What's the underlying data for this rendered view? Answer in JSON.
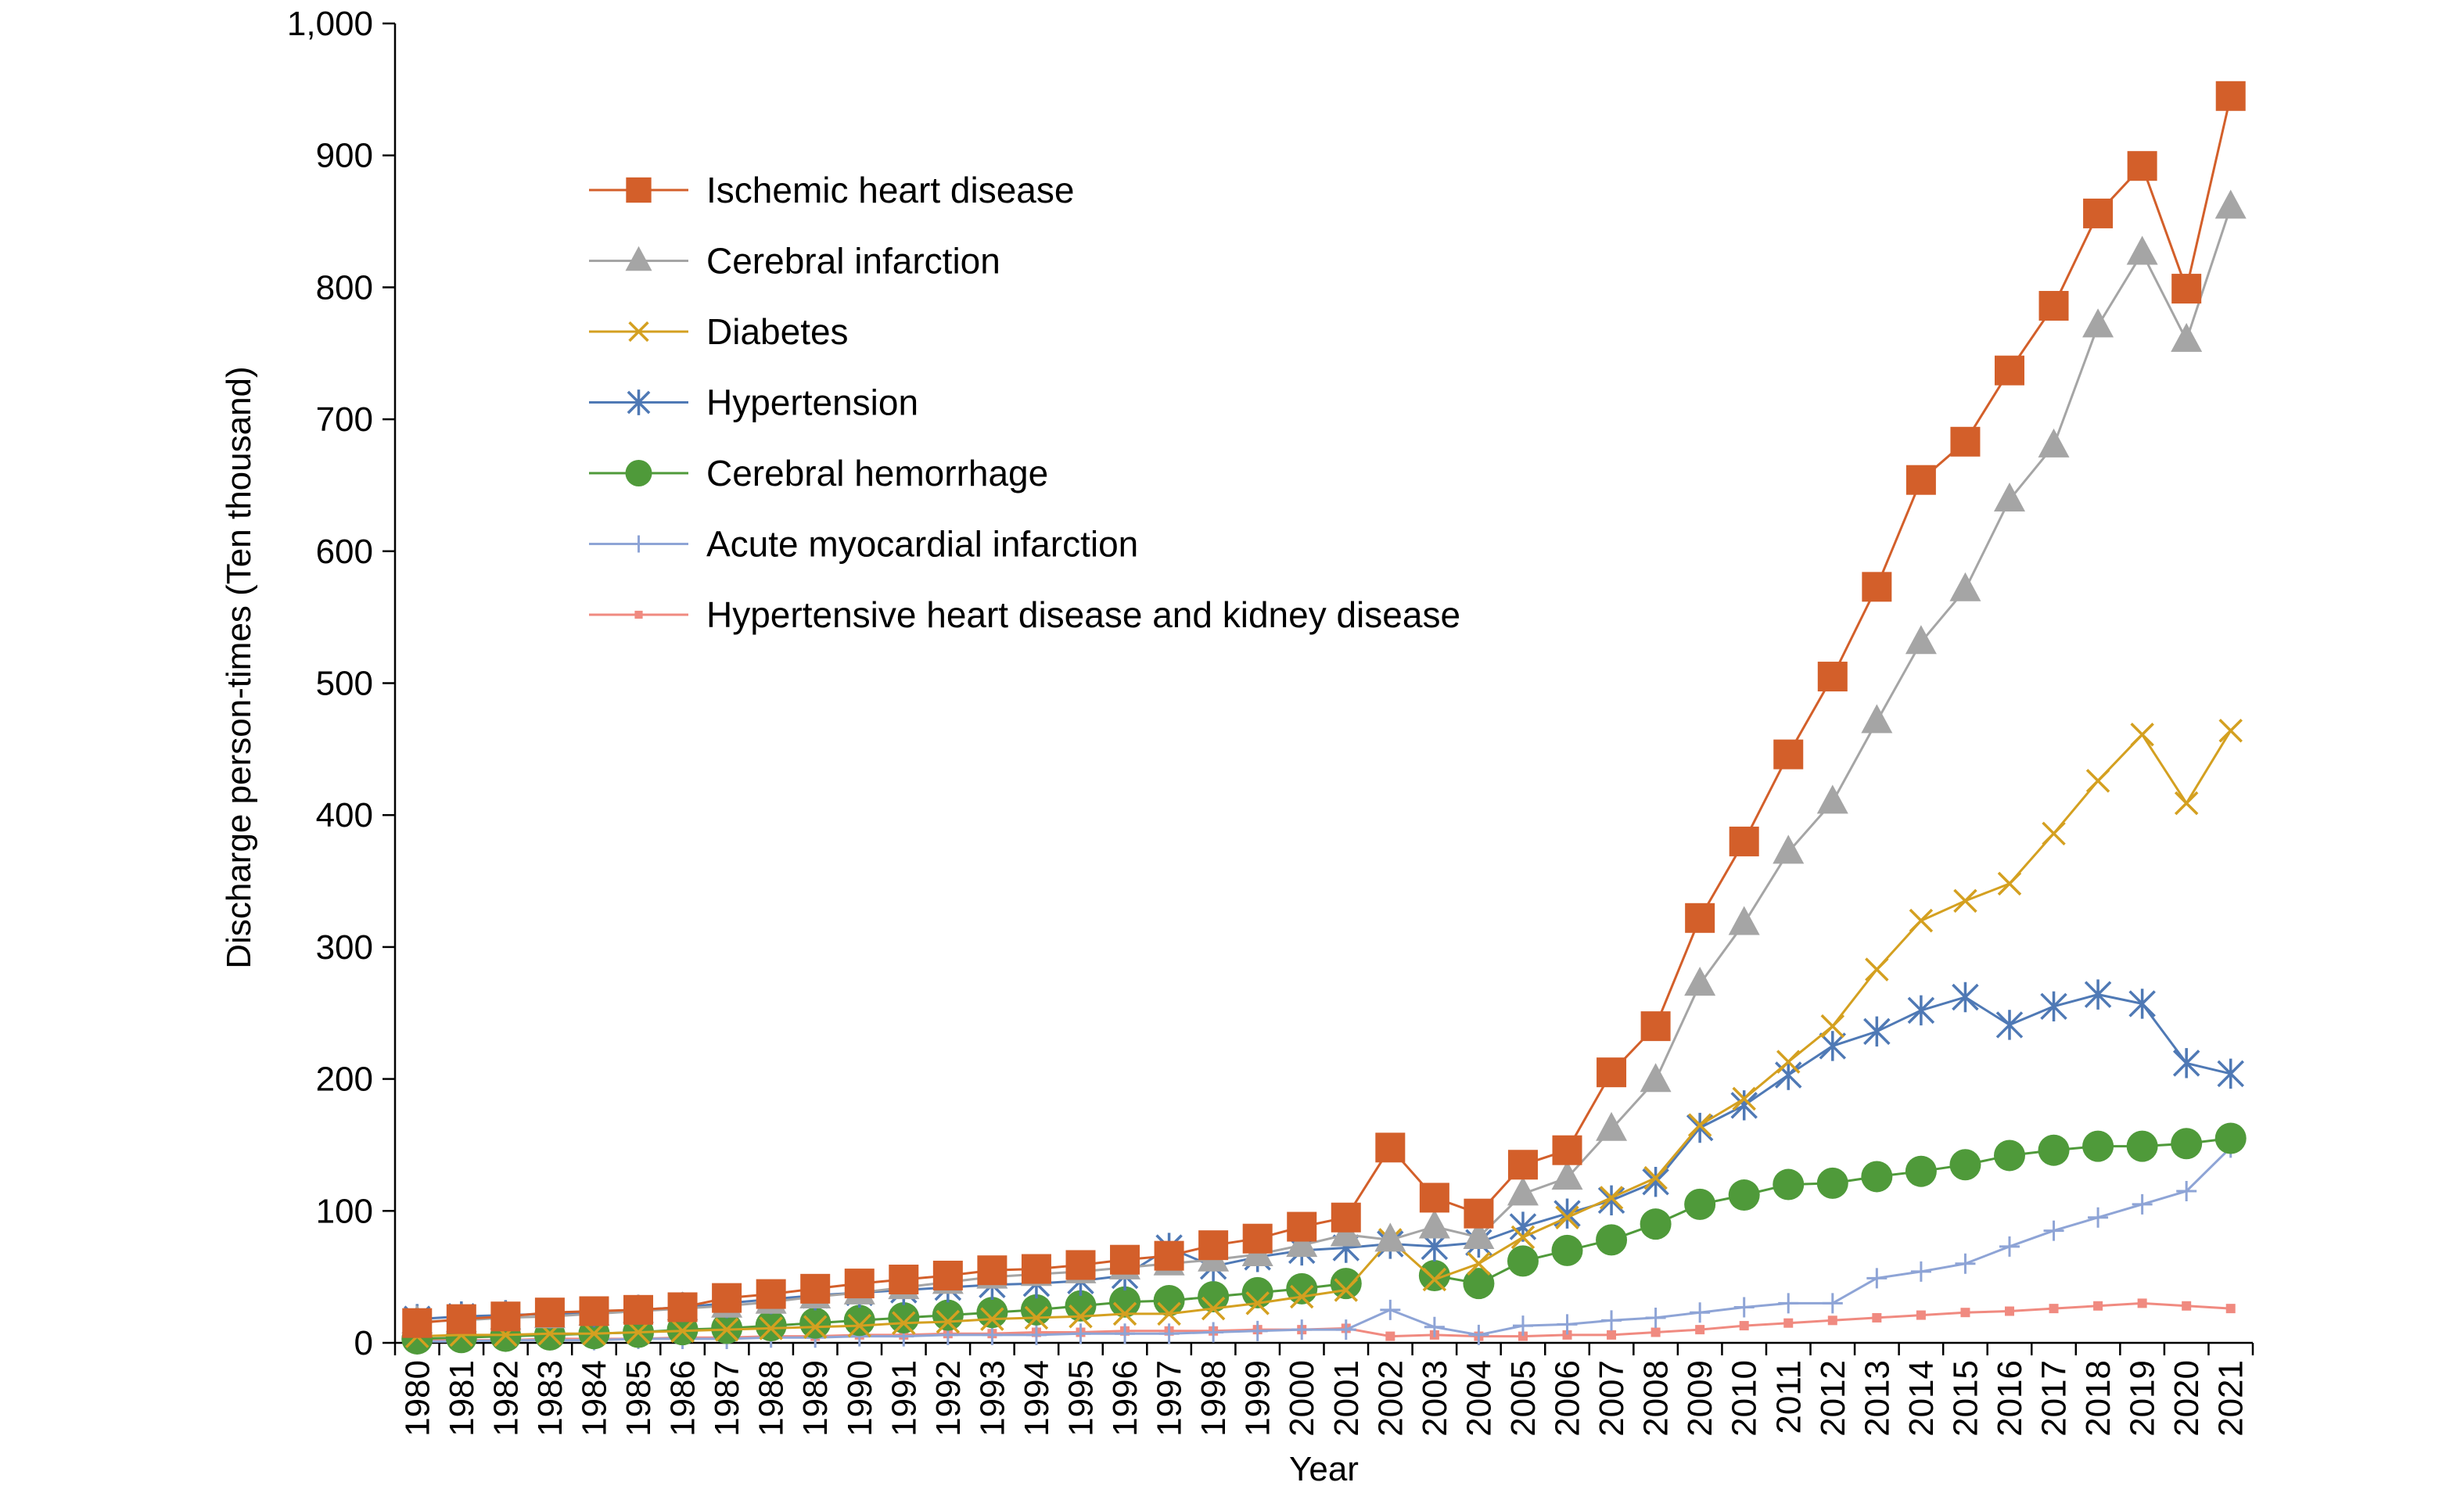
{
  "chart_data": {
    "type": "line",
    "title": "",
    "xlabel": "Year",
    "ylabel": "Discharge person-times (Ten thousand)",
    "ylim": [
      0,
      1000
    ],
    "y_ticks": [
      0,
      100,
      200,
      300,
      400,
      500,
      600,
      700,
      800,
      900,
      1000
    ],
    "y_tick_labels": [
      "0",
      "100",
      "200",
      "300",
      "400",
      "500",
      "600",
      "700",
      "800",
      "900",
      "1,000"
    ],
    "grid": false,
    "legend_position": "upper-left inside",
    "x": [
      "1980",
      "1981",
      "1982",
      "1983",
      "1984",
      "1985",
      "1986",
      "1987",
      "1988",
      "1989",
      "1990",
      "1991",
      "1992",
      "1993",
      "1994",
      "1995",
      "1996",
      "1997",
      "1998",
      "1999",
      "2000",
      "2001",
      "2002",
      "2003",
      "2004",
      "2005",
      "2006",
      "2007",
      "2008",
      "2009",
      "2010",
      "2011",
      "2012",
      "2013",
      "2014",
      "2015",
      "2016",
      "2017",
      "2018",
      "2019",
      "2020",
      "2021"
    ],
    "series": [
      {
        "name": "Ischemic heart disease",
        "color": "#d35f2a",
        "marker": "square",
        "values": [
          15,
          18,
          20,
          23,
          24,
          25,
          27,
          34,
          37,
          41,
          45,
          48,
          51,
          55,
          56,
          59,
          63,
          66,
          74,
          79,
          88,
          95,
          148,
          110,
          98,
          135,
          146,
          205,
          240,
          322,
          380,
          446,
          505,
          573,
          654,
          683,
          737,
          786,
          856,
          892,
          799,
          945
        ]
      },
      {
        "name": "Cerebral infarction",
        "color": "#a5a5a5",
        "marker": "triangle",
        "values": [
          16,
          17,
          19,
          20,
          22,
          24,
          26,
          28,
          31,
          35,
          38,
          42,
          46,
          50,
          52,
          54,
          57,
          60,
          63,
          67,
          74,
          82,
          78,
          88,
          80,
          113,
          125,
          162,
          199,
          272,
          318,
          372,
          410,
          471,
          531,
          571,
          639,
          680,
          771,
          826,
          760,
          861
        ]
      },
      {
        "name": "Diabetes",
        "color": "#d4a020",
        "marker": "x",
        "values": [
          5,
          6,
          6,
          7,
          7,
          8,
          9,
          10,
          11,
          12,
          13,
          15,
          16,
          18,
          19,
          20,
          22,
          22,
          26,
          30,
          35,
          40,
          78,
          48,
          60,
          80,
          95,
          110,
          125,
          165,
          185,
          213,
          240,
          283,
          320,
          335,
          348,
          386,
          426,
          461,
          409,
          464
        ]
      },
      {
        "name": "Hypertension",
        "color": "#4f79b5",
        "marker": "asterisk",
        "values": [
          18,
          20,
          21,
          22,
          23,
          25,
          27,
          30,
          33,
          36,
          38,
          40,
          42,
          44,
          45,
          47,
          51,
          72,
          58,
          65,
          70,
          72,
          75,
          73,
          76,
          88,
          98,
          108,
          122,
          163,
          180,
          203,
          225,
          236,
          252,
          262,
          241,
          255,
          264,
          257,
          212,
          204
        ]
      },
      {
        "name": "Cerebral hemorrhage",
        "color": "#4f9a3a",
        "marker": "circle",
        "values": [
          3,
          4,
          5,
          6,
          7,
          8,
          10,
          11,
          13,
          15,
          17,
          19,
          21,
          23,
          25,
          28,
          31,
          32,
          35,
          38,
          41,
          45,
          null,
          51,
          45,
          62,
          70,
          78,
          90,
          105,
          112,
          120,
          121,
          126,
          130,
          135,
          142,
          146,
          149,
          149,
          151,
          155
        ]
      },
      {
        "name": "Acute myocardial infarction",
        "color": "#8ea4d6",
        "marker": "plus",
        "values": [
          1,
          1,
          2,
          2,
          2,
          3,
          3,
          3,
          4,
          4,
          5,
          5,
          6,
          6,
          6,
          7,
          7,
          7,
          8,
          9,
          10,
          10,
          25,
          12,
          6,
          13,
          14,
          17,
          19,
          23,
          27,
          30,
          30,
          49,
          54,
          60,
          73,
          85,
          95,
          105,
          115,
          148
        ]
      },
      {
        "name": "Hypertensive heart disease and kidney disease",
        "color": "#f08a80",
        "marker": "small-square",
        "values": [
          2,
          2,
          2,
          3,
          3,
          3,
          4,
          4,
          5,
          5,
          6,
          6,
          7,
          7,
          8,
          8,
          9,
          9,
          9,
          10,
          10,
          11,
          5,
          6,
          5,
          5,
          6,
          6,
          8,
          10,
          13,
          15,
          17,
          19,
          21,
          23,
          24,
          26,
          28,
          30,
          28,
          26
        ]
      }
    ]
  }
}
